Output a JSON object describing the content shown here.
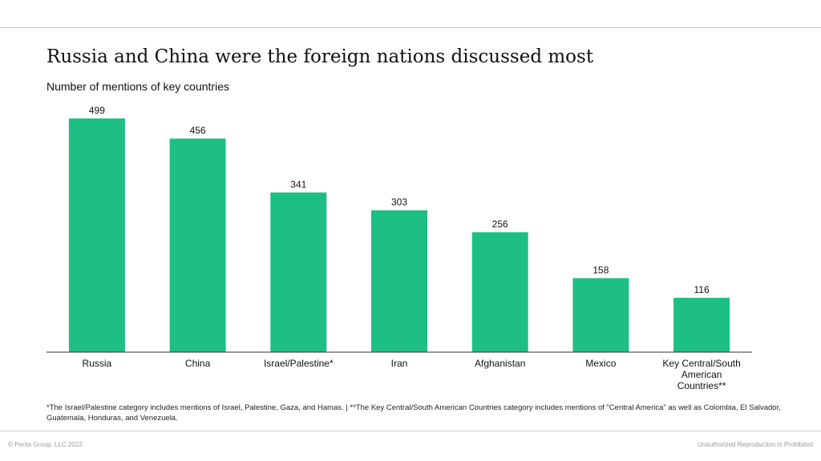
{
  "chart_data": {
    "type": "bar",
    "title": "Russia and China were the foreign nations discussed most",
    "subtitle": "Number of mentions of key countries",
    "categories": [
      [
        "Russia"
      ],
      [
        "China"
      ],
      [
        "Israel/Palestine*"
      ],
      [
        "Iran"
      ],
      [
        "Afghanistan"
      ],
      [
        "Mexico"
      ],
      [
        "Key Central/South",
        "American",
        "Countries**"
      ]
    ],
    "values": [
      499,
      456,
      341,
      303,
      256,
      158,
      116
    ],
    "ylim": [
      0,
      520
    ],
    "grid": false,
    "bar_color": "#1dbf83",
    "axis_color": "#333333"
  },
  "footnote": "*The Israel/Palestine category includes mentions of Israel, Palestine, Gaza, and Hamas. | **The Key Central/South American Countries category includes mentions of \"Central America\" as well as Colombia, El Salvador, Guatemala, Honduras, and Venezuela.",
  "footer": {
    "copyright": "© Penta Group, LLC 2022",
    "disclaimer": "Unauthorized Reproduction Is Prohibited"
  }
}
